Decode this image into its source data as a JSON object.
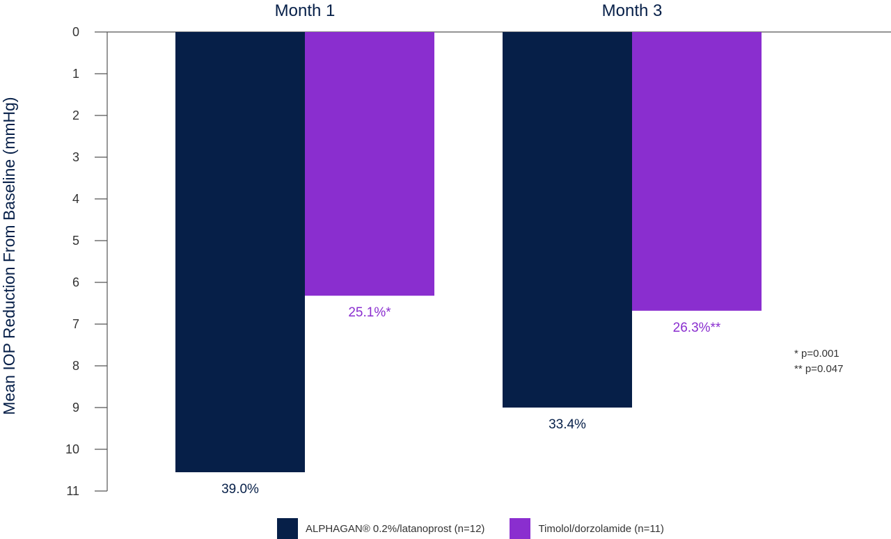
{
  "chart_data": {
    "type": "bar",
    "orientation": "vertical-inverted",
    "ylabel": "Mean IOP Reduction From Baseline (mmHg)",
    "ylim": [
      0,
      11
    ],
    "yticks": [
      0,
      1,
      2,
      3,
      4,
      5,
      6,
      7,
      8,
      9,
      10,
      11
    ],
    "categories": [
      "Month 1",
      "Month 3"
    ],
    "series": [
      {
        "name": "ALPHAGAN® 0.2%/latanoprost (n=12)",
        "color": "#061f48",
        "values": [
          10.55,
          9.0
        ],
        "labels": [
          "39.0%",
          "33.4%"
        ]
      },
      {
        "name": "Timolol/dorzolamide (n=11)",
        "color": "#8a2ecf",
        "values": [
          6.32,
          6.68
        ],
        "labels": [
          "25.1%*",
          "26.3%**"
        ]
      }
    ],
    "footnotes": [
      "* p=0.001",
      "** p=0.047"
    ],
    "grid": false,
    "legend_position": "bottom"
  }
}
